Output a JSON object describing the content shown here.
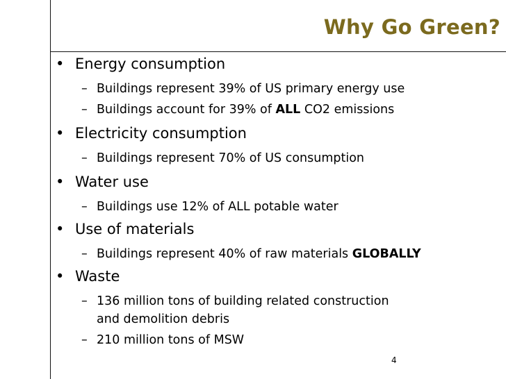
{
  "slide": {
    "title": "Why Go Green?",
    "page_number": "4",
    "title_color": "#7b6a1e"
  },
  "bullets": [
    {
      "text": "Energy consumption",
      "subs": [
        {
          "text": "Buildings represent 39% of US primary energy use"
        },
        {
          "pre": "Buildings account for 39% of ",
          "bold": "ALL",
          "post": " CO2 emissions"
        }
      ]
    },
    {
      "text": "Electricity consumption",
      "subs": [
        {
          "text": "Buildings represent 70% of US consumption"
        }
      ]
    },
    {
      "text": "Water use",
      "subs": [
        {
          "text": "Buildings use 12% of ALL potable water"
        }
      ]
    },
    {
      "text": "Use of materials",
      "subs": [
        {
          "pre": "Buildings represent 40% of raw materials ",
          "bold": "GLOBALLY"
        }
      ]
    },
    {
      "text": "Waste",
      "subs": [
        {
          "line1": "136 million tons of building related construction",
          "line2": "and demolition debris"
        },
        {
          "text": "210 million tons of MSW"
        }
      ]
    }
  ],
  "glyphs": {
    "bullet": "•",
    "dash": "–"
  }
}
